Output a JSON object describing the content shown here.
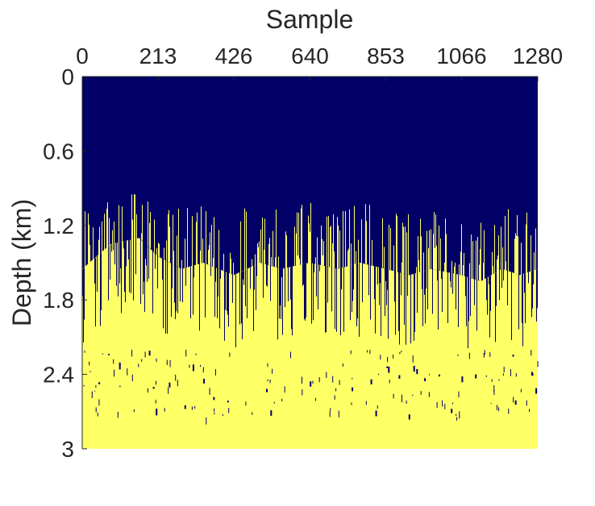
{
  "chart_data": {
    "type": "heatmap",
    "title": "",
    "xlabel": "Sample",
    "ylabel": "Depth (km)",
    "x_axis_position": "top",
    "xlim": [
      0,
      1280
    ],
    "ylim": [
      0,
      3
    ],
    "y_reversed": true,
    "x_ticks": [
      0,
      213,
      426,
      640,
      853,
      1066,
      1280
    ],
    "y_ticks": [
      0,
      0.6,
      1.2,
      1.8,
      2.4,
      3
    ],
    "x_tick_labels": [
      "0",
      "213",
      "426",
      "640",
      "853",
      "1066",
      "1280"
    ],
    "y_tick_labels": [
      "0",
      "0.6",
      "1.2",
      "1.8",
      "2.4",
      "3"
    ],
    "colors": {
      "upper": "#000066",
      "lower": "#FFFF66"
    },
    "boundary_profile": {
      "x": [
        0,
        80,
        160,
        213,
        280,
        340,
        426,
        500,
        560,
        640,
        720,
        780,
        853,
        920,
        980,
        1066,
        1120,
        1180,
        1230,
        1280
      ],
      "depth_km": [
        1.55,
        1.35,
        1.3,
        1.45,
        1.55,
        1.5,
        1.6,
        1.5,
        1.55,
        1.5,
        1.55,
        1.5,
        1.55,
        1.6,
        1.55,
        1.6,
        1.65,
        1.55,
        1.6,
        1.55
      ]
    },
    "spike_depth_range_km": [
      1.0,
      2.2
    ],
    "grid": false,
    "legend": "none"
  }
}
